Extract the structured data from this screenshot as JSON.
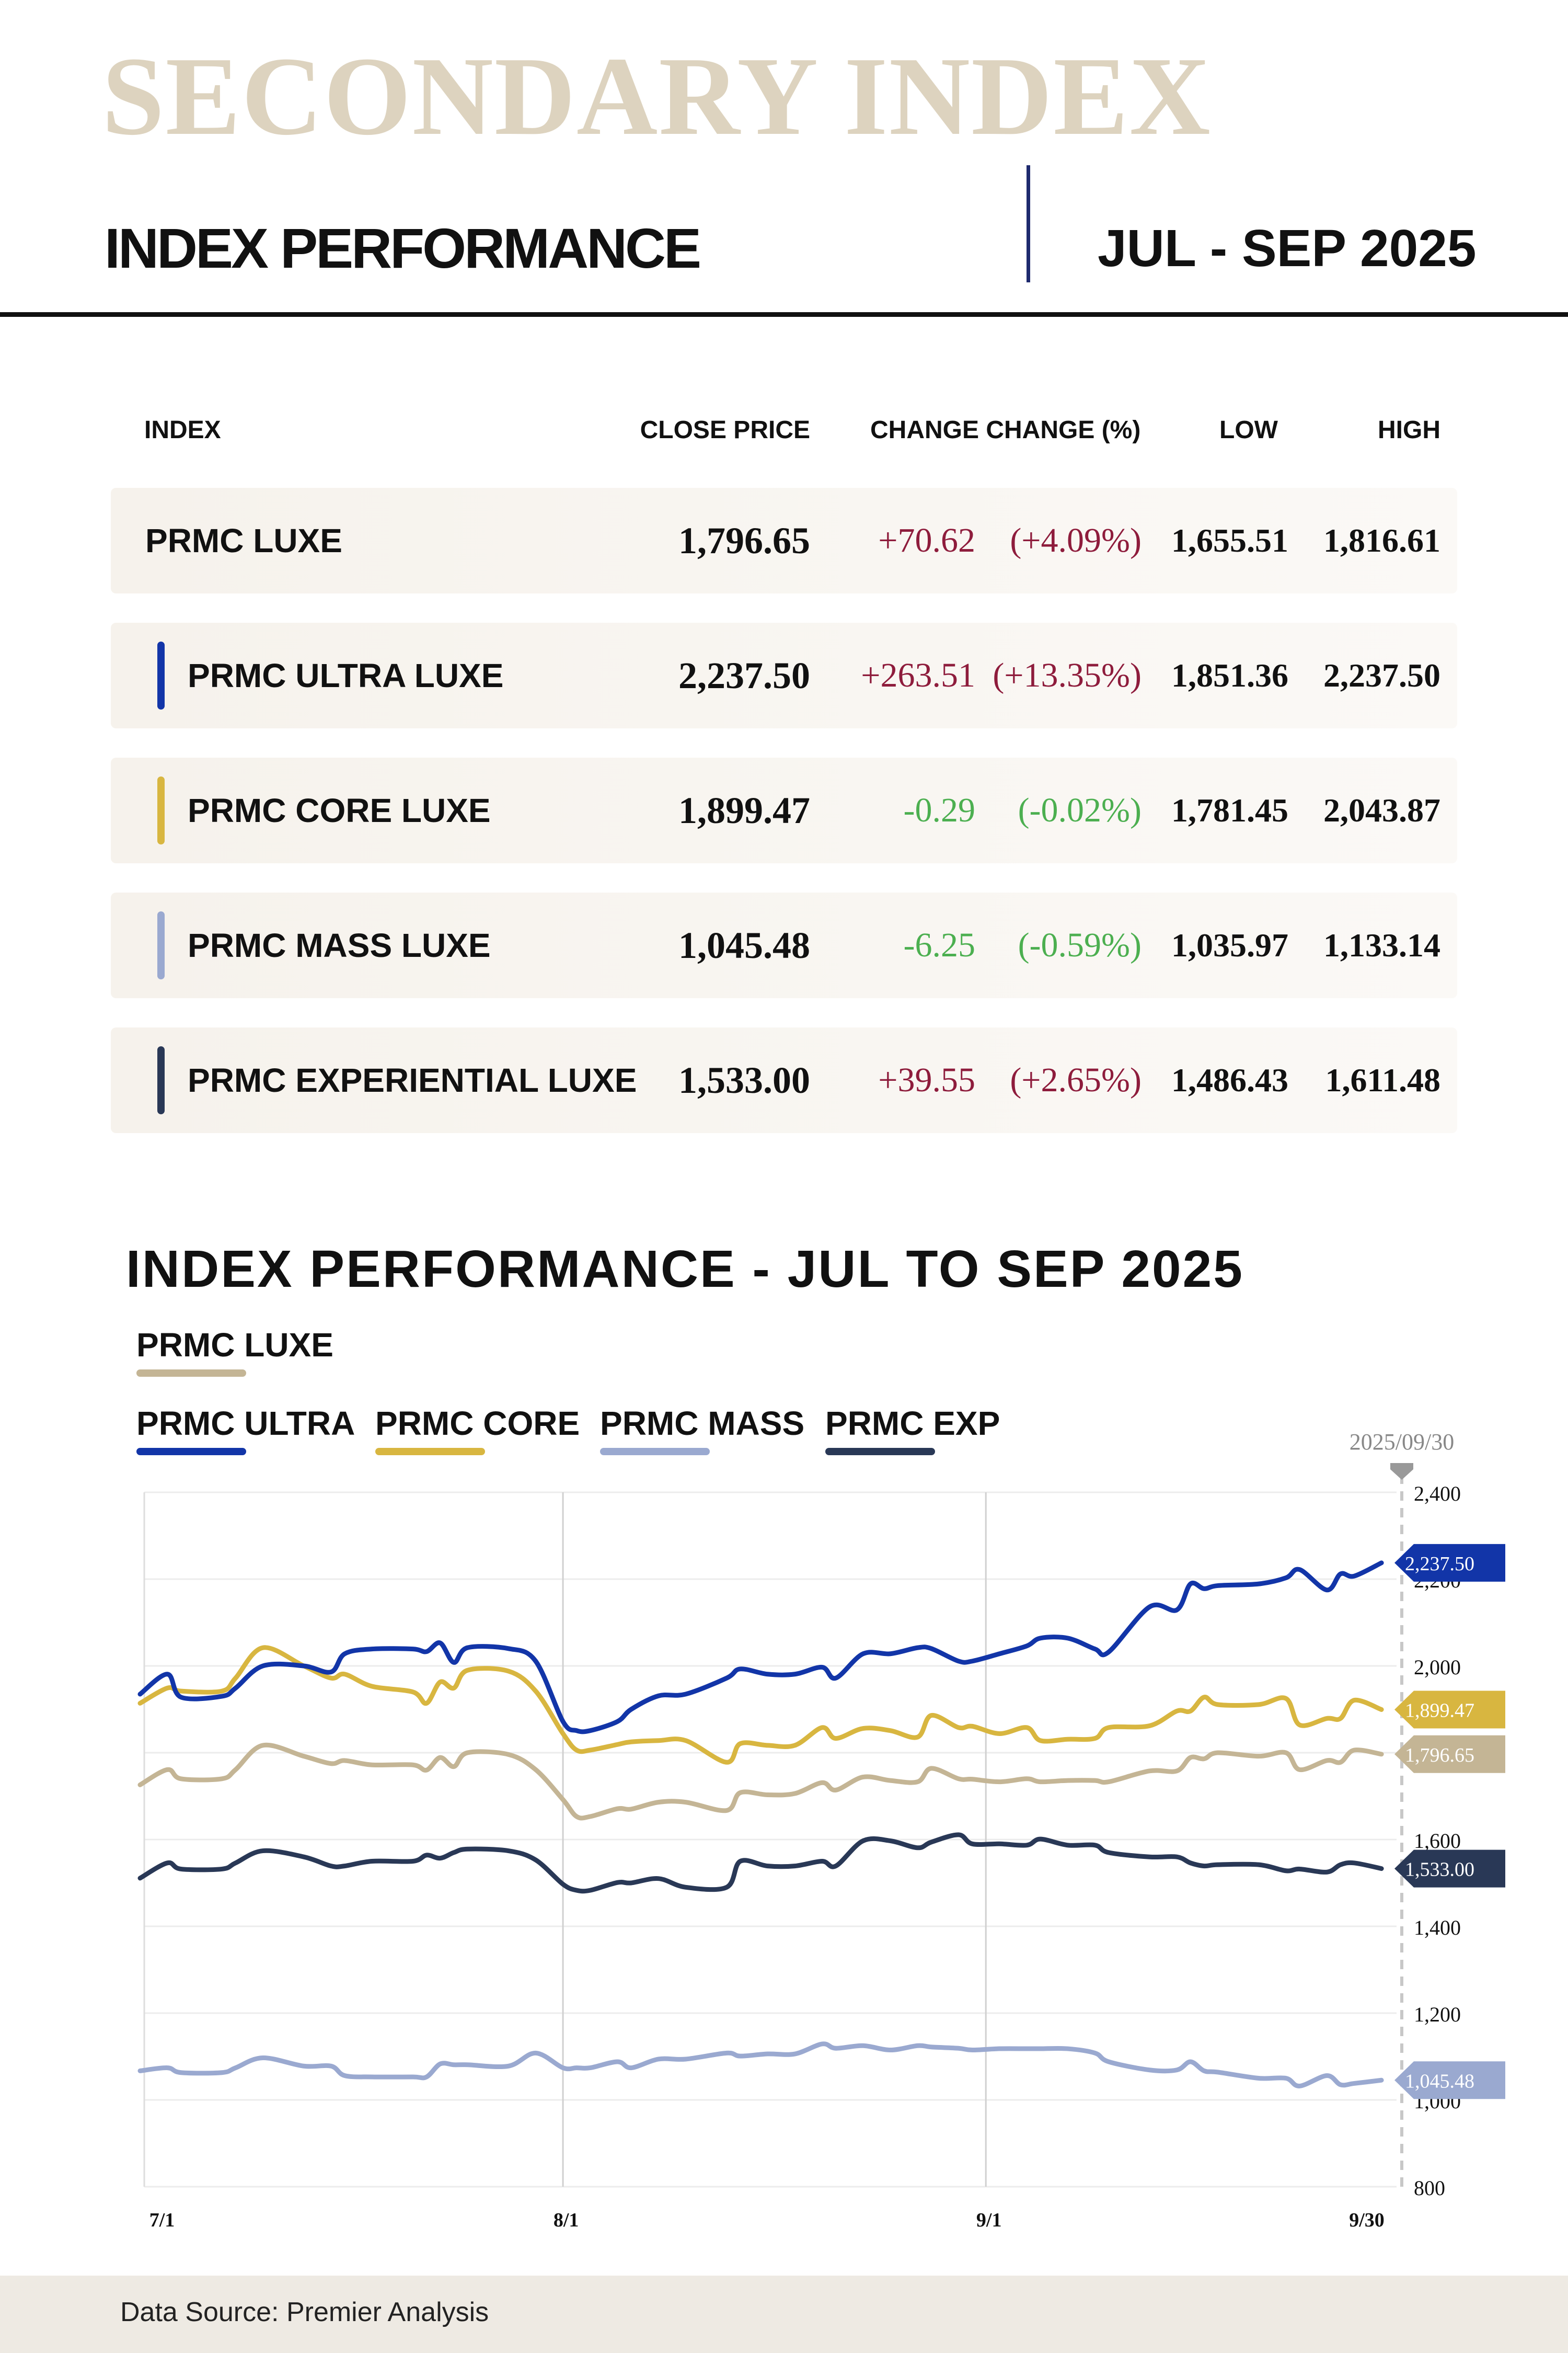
{
  "header": {
    "brand": "SECONDARY INDEX",
    "subtitle": "INDEX PERFORMANCE",
    "period": "JUL - SEP 2025"
  },
  "table": {
    "headers": {
      "index": "INDEX",
      "close": "CLOSE PRICE",
      "change": "CHANGE CHANGE (%)",
      "low": "LOW",
      "high": "HIGH"
    },
    "rows": [
      {
        "name": "PRMC LUXE",
        "close": "1,796.65",
        "change": "+70.62",
        "pct": "(+4.09%)",
        "low": "1,655.51",
        "high": "1,816.61",
        "dir": "up",
        "color": ""
      },
      {
        "name": "PRMC ULTRA LUXE",
        "close": "2,237.50",
        "change": "+263.51",
        "pct": "(+13.35%)",
        "low": "1,851.36",
        "high": "2,237.50",
        "dir": "up",
        "color": "#1235a8"
      },
      {
        "name": "PRMC CORE LUXE",
        "close": "1,899.47",
        "change": "-0.29",
        "pct": "(-0.02%)",
        "low": "1,781.45",
        "high": "2,043.87",
        "dir": "down",
        "color": "#d8b640"
      },
      {
        "name": "PRMC MASS LUXE",
        "close": "1,045.48",
        "change": "-6.25",
        "pct": "(-0.59%)",
        "low": "1,035.97",
        "high": "1,133.14",
        "dir": "down",
        "color": "#9aa9d0"
      },
      {
        "name": "PRMC EXPERIENTIAL LUXE",
        "close": "1,533.00",
        "change": "+39.55",
        "pct": "(+2.65%)",
        "low": "1,486.43",
        "high": "1,611.48",
        "dir": "up",
        "color": "#293856"
      }
    ],
    "up_color": "#8e1c3c",
    "down_color": "#4caf50"
  },
  "chart_data": {
    "type": "line",
    "title": "INDEX PERFORMANCE - JUL TO SEP 2025",
    "xlabel": "",
    "ylabel": "",
    "x_ticks": [
      "7/1",
      "8/1",
      "9/1",
      "9/30"
    ],
    "x_tick_days": [
      0,
      31,
      62,
      91
    ],
    "y_ticks": [
      800,
      1000,
      1200,
      1400,
      1600,
      1800,
      2000,
      2200,
      2400
    ],
    "y_tick_labels": [
      "800",
      "1,000",
      "1,200",
      "1,400",
      "1,600",
      "",
      "2,000",
      "2,200",
      "2,400"
    ],
    "ylim": [
      800,
      2400
    ],
    "grid": true,
    "marker_date": "2025/09/30",
    "legend_placement": "top-left",
    "x_days": [
      0,
      2,
      3,
      6,
      7,
      9,
      12,
      14,
      15,
      17,
      20,
      21,
      22,
      23,
      24,
      27,
      29,
      31,
      32,
      33,
      35,
      36,
      38,
      40,
      43,
      44,
      46,
      48,
      50,
      51,
      53,
      55,
      57,
      58,
      60,
      61,
      63,
      65,
      66,
      68,
      70,
      71,
      74,
      76,
      77,
      78,
      79,
      82,
      84,
      85,
      87,
      88,
      89,
      91
    ],
    "series": [
      {
        "name": "PRMC LUXE",
        "color": "#c4b595",
        "end_label": "1,796.65",
        "values": [
          1726,
          1761,
          1740,
          1740,
          1761,
          1817,
          1792,
          1775,
          1782,
          1772,
          1772,
          1760,
          1789,
          1768,
          1800,
          1796,
          1761,
          1692,
          1653,
          1653,
          1671,
          1670,
          1686,
          1686,
          1667,
          1708,
          1703,
          1706,
          1731,
          1714,
          1744,
          1736,
          1733,
          1764,
          1740,
          1739,
          1733,
          1740,
          1733,
          1736,
          1736,
          1733,
          1758,
          1758,
          1789,
          1786,
          1800,
          1792,
          1800,
          1761,
          1782,
          1778,
          1806,
          1796.65
        ]
      },
      {
        "name": "PRMC ULTRA",
        "color": "#1235a8",
        "end_label": "2,237.50",
        "values": [
          1935,
          1981,
          1928,
          1930,
          1949,
          2000,
          2000,
          1986,
          2028,
          2039,
          2039,
          2033,
          2053,
          2008,
          2042,
          2040,
          2011,
          1872,
          1851,
          1851,
          1872,
          1900,
          1931,
          1935,
          1972,
          1993,
          1981,
          1981,
          1997,
          1972,
          2028,
          2028,
          2042,
          2040,
          2011,
          2011,
          2028,
          2046,
          2064,
          2064,
          2039,
          2032,
          2136,
          2129,
          2189,
          2178,
          2185,
          2189,
          2203,
          2222,
          2175,
          2212,
          2207,
          2237.5
        ]
      },
      {
        "name": "PRMC CORE",
        "color": "#d8b640",
        "end_label": "1,899.47",
        "values": [
          1914,
          1949,
          1942,
          1942,
          1972,
          2042,
          2000,
          1972,
          1981,
          1953,
          1940,
          1914,
          1963,
          1949,
          1990,
          1988,
          1942,
          1844,
          1806,
          1806,
          1819,
          1825,
          1828,
          1828,
          1778,
          1821,
          1817,
          1817,
          1858,
          1833,
          1856,
          1851,
          1836,
          1886,
          1858,
          1861,
          1844,
          1858,
          1828,
          1831,
          1833,
          1858,
          1862,
          1896,
          1896,
          1928,
          1911,
          1911,
          1925,
          1864,
          1879,
          1879,
          1921,
          1899.47
        ]
      },
      {
        "name": "PRMC MASS",
        "color": "#9aa9d0",
        "end_label": "1,045.48",
        "values": [
          1067,
          1074,
          1063,
          1063,
          1074,
          1097,
          1078,
          1078,
          1056,
          1053,
          1053,
          1053,
          1083,
          1081,
          1081,
          1078,
          1108,
          1074,
          1074,
          1074,
          1088,
          1074,
          1094,
          1094,
          1108,
          1101,
          1106,
          1106,
          1129,
          1119,
          1125,
          1115,
          1125,
          1122,
          1119,
          1115,
          1118,
          1118,
          1118,
          1118,
          1108,
          1088,
          1069,
          1069,
          1088,
          1067,
          1064,
          1050,
          1050,
          1032,
          1056,
          1035,
          1038,
          1045.48
        ]
      },
      {
        "name": "PRMC EXP",
        "color": "#293856",
        "end_label": "1,533.00",
        "values": [
          1511,
          1546,
          1532,
          1532,
          1546,
          1574,
          1560,
          1539,
          1539,
          1550,
          1550,
          1564,
          1557,
          1570,
          1578,
          1574,
          1553,
          1497,
          1483,
          1483,
          1501,
          1500,
          1510,
          1490,
          1490,
          1550,
          1539,
          1539,
          1550,
          1539,
          1597,
          1597,
          1581,
          1594,
          1611,
          1590,
          1590,
          1587,
          1601,
          1587,
          1587,
          1570,
          1560,
          1560,
          1546,
          1539,
          1542,
          1542,
          1528,
          1532,
          1525,
          1542,
          1546,
          1533
        ]
      }
    ]
  },
  "footer": {
    "source": "Data Source: Premier Analysis"
  }
}
